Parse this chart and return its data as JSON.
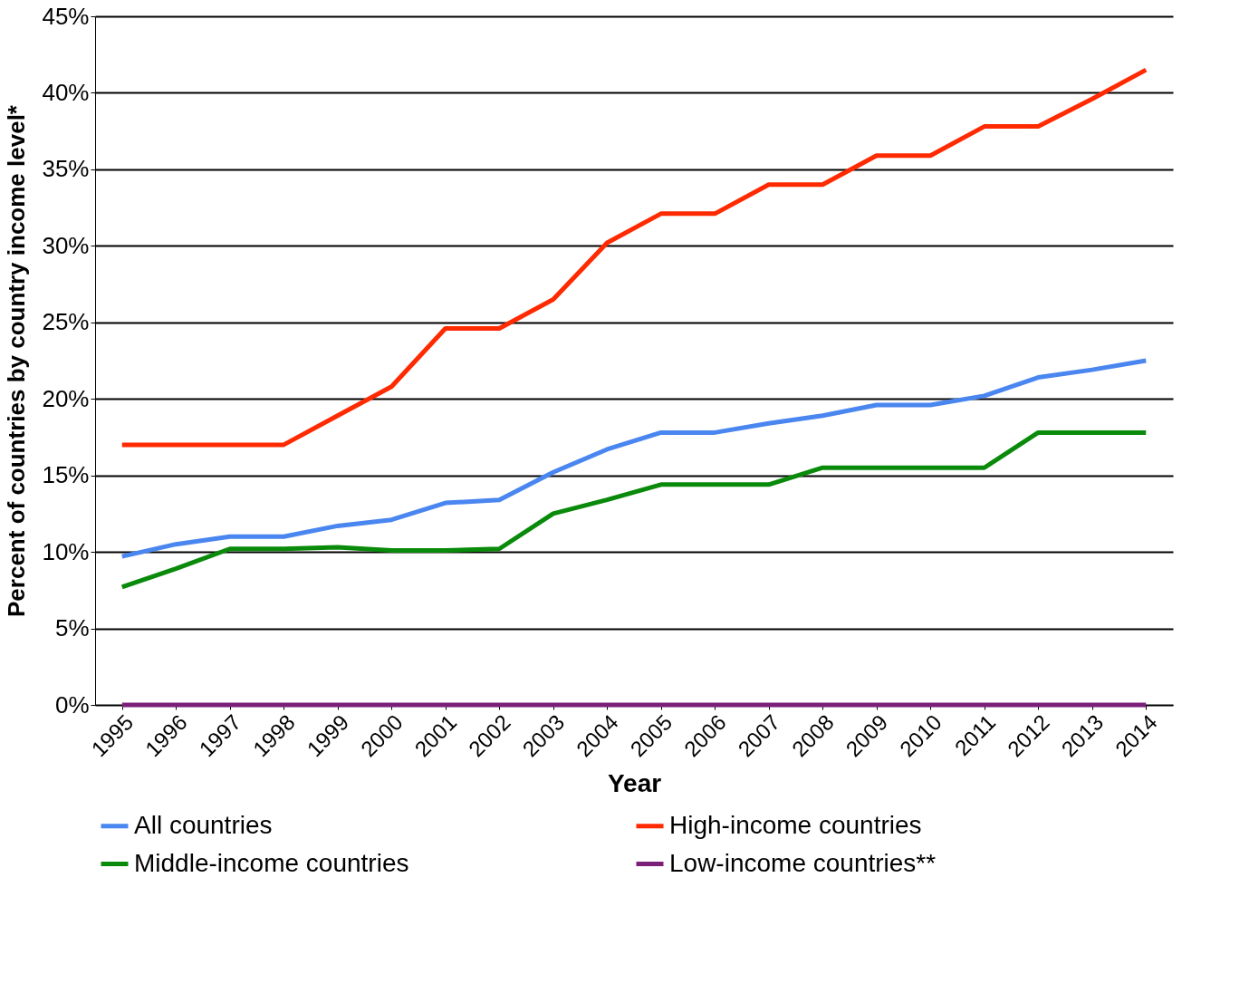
{
  "chart_data": {
    "type": "line",
    "xlabel": "Year",
    "ylabel": "Percent of countries by country income level*",
    "categories": [
      "1995",
      "1996",
      "1997",
      "1998",
      "1999",
      "2000",
      "2001",
      "2002",
      "2003",
      "2004",
      "2005",
      "2006",
      "2007",
      "2008",
      "2009",
      "2010",
      "2011",
      "2012",
      "2013",
      "2014"
    ],
    "series": [
      {
        "name": "All countries",
        "color": "#4a86f0",
        "values": [
          9.7,
          10.5,
          11.0,
          11.0,
          11.7,
          12.1,
          13.2,
          13.4,
          15.2,
          16.7,
          17.8,
          17.8,
          18.4,
          18.9,
          19.6,
          19.6,
          20.2,
          21.4,
          21.9,
          22.5
        ]
      },
      {
        "name": "High-income countries",
        "color": "#ff2a00",
        "values": [
          17.0,
          17.0,
          17.0,
          17.0,
          18.9,
          20.8,
          24.6,
          24.6,
          26.5,
          30.2,
          32.1,
          32.1,
          34.0,
          34.0,
          35.9,
          35.9,
          37.8,
          37.8,
          39.6,
          41.5
        ]
      },
      {
        "name": "Middle-income countries",
        "color": "#0a8a0a",
        "values": [
          7.7,
          8.9,
          10.2,
          10.2,
          10.3,
          10.1,
          10.1,
          10.2,
          12.5,
          13.4,
          14.4,
          14.4,
          14.4,
          15.5,
          15.5,
          15.5,
          15.5,
          17.8,
          17.8,
          17.8
        ]
      },
      {
        "name": "Low-income countries**",
        "color": "#7a1f7a",
        "values": [
          0,
          0,
          0,
          0,
          0,
          0,
          0,
          0,
          0,
          0,
          0,
          0,
          0,
          0,
          0,
          0,
          0,
          0,
          0,
          0
        ]
      }
    ],
    "ylim": [
      0,
      45
    ],
    "yticks": [
      {
        "value": 0,
        "label": "0%"
      },
      {
        "value": 5,
        "label": "5%"
      },
      {
        "value": 10,
        "label": "10%"
      },
      {
        "value": 15,
        "label": "15%"
      },
      {
        "value": 20,
        "label": "20%"
      },
      {
        "value": 25,
        "label": "25%"
      },
      {
        "value": 30,
        "label": "30%"
      },
      {
        "value": 35,
        "label": "35%"
      },
      {
        "value": 40,
        "label": "40%"
      },
      {
        "value": 45,
        "label": "45%"
      }
    ],
    "grid": "y",
    "legend": "bottom",
    "marker": "none",
    "line_style": "solid"
  }
}
